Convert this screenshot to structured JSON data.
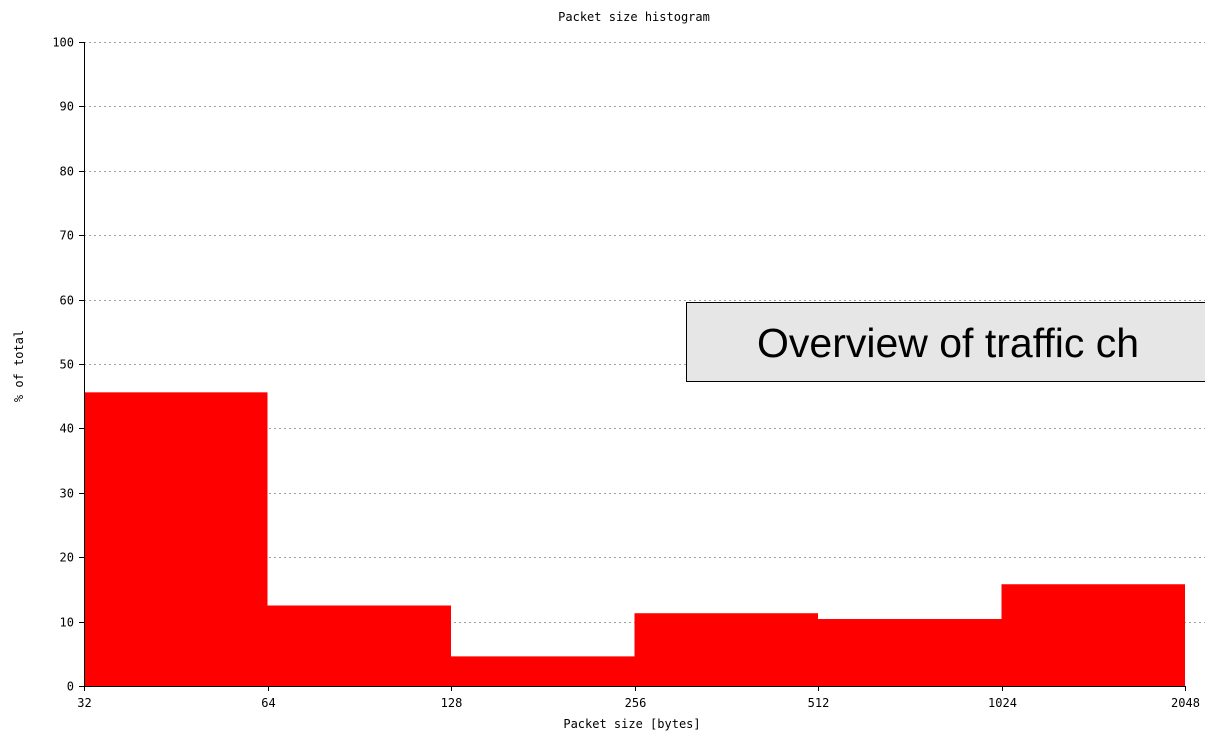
{
  "chart_data": {
    "type": "bar",
    "title": "Packet size histogram",
    "xlabel": "Packet size [bytes]",
    "ylabel": "% of total",
    "x_ticks": [
      "32",
      "64",
      "128",
      "256",
      "512",
      "1024",
      "2048"
    ],
    "y_ticks": [
      "0",
      "10",
      "20",
      "30",
      "40",
      "50",
      "60",
      "70",
      "80",
      "90",
      "100"
    ],
    "bins": [
      {
        "from": 32,
        "to": 64,
        "value": 45.6
      },
      {
        "from": 64,
        "to": 128,
        "value": 12.5
      },
      {
        "from": 128,
        "to": 256,
        "value": 4.6
      },
      {
        "from": 256,
        "to": 512,
        "value": 11.3
      },
      {
        "from": 512,
        "to": 1024,
        "value": 10.4
      },
      {
        "from": 1024,
        "to": 2048,
        "value": 15.8
      }
    ],
    "ylim": [
      0,
      100
    ],
    "grid": true,
    "bar_color": "#ff0000"
  },
  "overlay": {
    "text": "Overview of traffic ch"
  }
}
